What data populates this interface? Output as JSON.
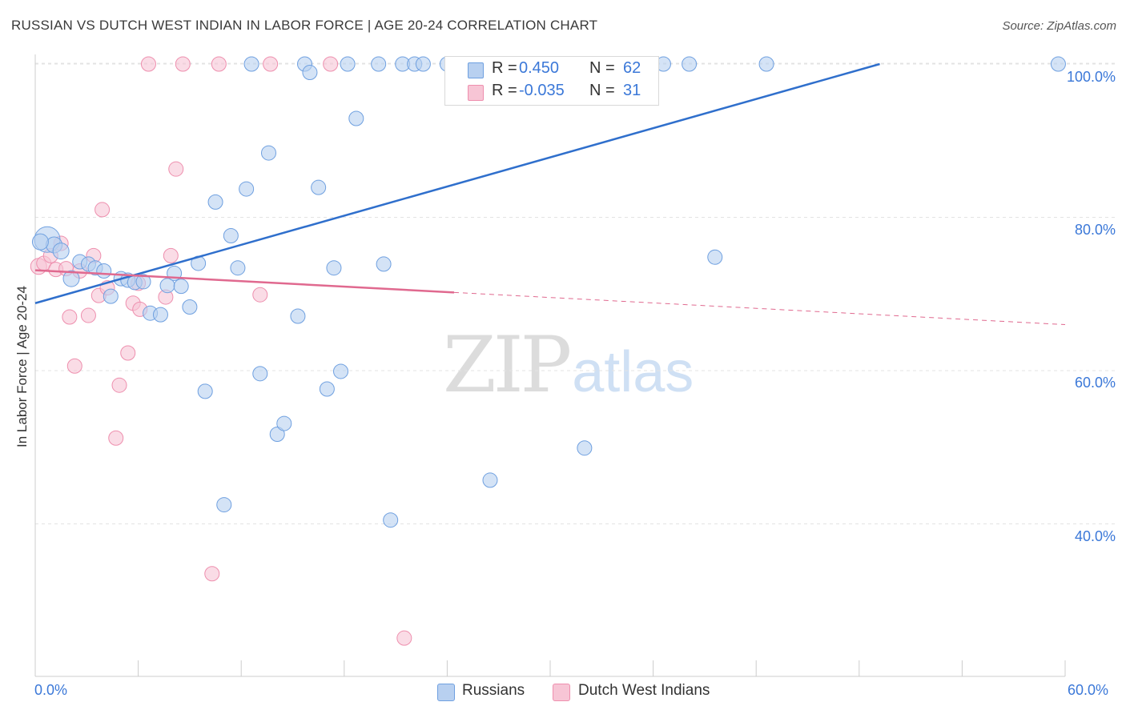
{
  "header": {
    "title": "RUSSIAN VS DUTCH WEST INDIAN IN LABOR FORCE | AGE 20-24 CORRELATION CHART",
    "source": "Source: ZipAtlas.com"
  },
  "watermark": {
    "zip": "ZIP",
    "atlas": "atlas"
  },
  "colors": {
    "russians": "#6fa0e0",
    "russians_fill": "#b8d0f0",
    "dutch": "#ee8fae",
    "dutch_fill": "#f7c5d5",
    "trend_russians": "#2f6fcc",
    "trend_dutch": "#e0698f",
    "tick_label": "#3b78d8",
    "grid": "#e3e3e3"
  },
  "legend_top": {
    "rows": [
      {
        "r_label": "R =",
        "r_value": "0.450",
        "n_label": "N =",
        "n_value": "62"
      },
      {
        "r_label": "R =",
        "r_value": "-0.035",
        "n_label": "N =",
        "n_value": "31"
      }
    ]
  },
  "legend_bottom": {
    "items": [
      "Russians",
      "Dutch West Indians"
    ]
  },
  "chart_data": {
    "type": "scatter",
    "title": "RUSSIAN VS DUTCH WEST INDIAN IN LABOR FORCE | AGE 20-24 CORRELATION CHART",
    "xlabel": "",
    "ylabel": "In Labor Force | Age 20-24",
    "xlim": [
      0,
      60
    ],
    "ylim": [
      20,
      103
    ],
    "x_tick_labels": [
      "0.0%",
      "60.0%"
    ],
    "y_ticks": [
      40,
      60,
      80,
      100
    ],
    "y_tick_labels": [
      "40.0%",
      "60.0%",
      "80.0%",
      "100.0%"
    ],
    "grid": "horizontal dashed",
    "legend_placement": "top-center",
    "series": [
      {
        "name": "Russians",
        "r": 0.45,
        "n": 62,
        "trend": {
          "x": [
            0,
            49.2
          ],
          "y": [
            68.8,
            100.0
          ]
        },
        "points": [
          {
            "x": 0.7,
            "y": 77.1,
            "s": 16
          },
          {
            "x": 1.1,
            "y": 76.4,
            "s": 10
          },
          {
            "x": 1.5,
            "y": 75.6,
            "s": 10
          },
          {
            "x": 2.1,
            "y": 72.0,
            "s": 10
          },
          {
            "x": 2.6,
            "y": 74.2,
            "s": 9
          },
          {
            "x": 3.1,
            "y": 73.9,
            "s": 9
          },
          {
            "x": 3.5,
            "y": 73.4,
            "s": 9
          },
          {
            "x": 4.0,
            "y": 73.0,
            "s": 9
          },
          {
            "x": 4.4,
            "y": 69.7,
            "s": 9
          },
          {
            "x": 5.0,
            "y": 72.0,
            "s": 9
          },
          {
            "x": 5.4,
            "y": 71.8,
            "s": 9
          },
          {
            "x": 5.8,
            "y": 71.5,
            "s": 9
          },
          {
            "x": 6.3,
            "y": 71.6,
            "s": 9
          },
          {
            "x": 6.7,
            "y": 67.5,
            "s": 9
          },
          {
            "x": 7.3,
            "y": 67.3,
            "s": 9
          },
          {
            "x": 7.7,
            "y": 71.1,
            "s": 9
          },
          {
            "x": 8.1,
            "y": 72.7,
            "s": 9
          },
          {
            "x": 8.5,
            "y": 71.0,
            "s": 9
          },
          {
            "x": 9.0,
            "y": 68.3,
            "s": 9
          },
          {
            "x": 9.5,
            "y": 74.0,
            "s": 9
          },
          {
            "x": 9.9,
            "y": 57.3,
            "s": 9
          },
          {
            "x": 10.5,
            "y": 82.0,
            "s": 9
          },
          {
            "x": 11.0,
            "y": 42.5,
            "s": 9
          },
          {
            "x": 11.4,
            "y": 77.6,
            "s": 9
          },
          {
            "x": 11.8,
            "y": 73.4,
            "s": 9
          },
          {
            "x": 12.3,
            "y": 83.7,
            "s": 9
          },
          {
            "x": 12.6,
            "y": 100.0,
            "s": 9
          },
          {
            "x": 13.1,
            "y": 59.6,
            "s": 9
          },
          {
            "x": 13.6,
            "y": 88.4,
            "s": 9
          },
          {
            "x": 14.1,
            "y": 51.7,
            "s": 9
          },
          {
            "x": 14.5,
            "y": 53.1,
            "s": 9
          },
          {
            "x": 15.3,
            "y": 67.1,
            "s": 9
          },
          {
            "x": 15.7,
            "y": 100.0,
            "s": 9
          },
          {
            "x": 16.0,
            "y": 98.9,
            "s": 9
          },
          {
            "x": 16.5,
            "y": 83.9,
            "s": 9
          },
          {
            "x": 17.0,
            "y": 57.6,
            "s": 9
          },
          {
            "x": 17.4,
            "y": 73.4,
            "s": 9
          },
          {
            "x": 17.8,
            "y": 59.9,
            "s": 9
          },
          {
            "x": 18.2,
            "y": 100.0,
            "s": 9
          },
          {
            "x": 18.7,
            "y": 92.9,
            "s": 9
          },
          {
            "x": 20.0,
            "y": 100.0,
            "s": 9
          },
          {
            "x": 20.3,
            "y": 73.9,
            "s": 9
          },
          {
            "x": 20.7,
            "y": 40.5,
            "s": 9
          },
          {
            "x": 21.4,
            "y": 100.0,
            "s": 9
          },
          {
            "x": 22.1,
            "y": 100.0,
            "s": 9
          },
          {
            "x": 22.6,
            "y": 100.0,
            "s": 9
          },
          {
            "x": 24.0,
            "y": 100.0,
            "s": 9
          },
          {
            "x": 24.5,
            "y": 100.0,
            "s": 9
          },
          {
            "x": 26.5,
            "y": 45.7,
            "s": 9
          },
          {
            "x": 27.3,
            "y": 100.0,
            "s": 9
          },
          {
            "x": 30.5,
            "y": 100.0,
            "s": 9
          },
          {
            "x": 32.0,
            "y": 49.9,
            "s": 9
          },
          {
            "x": 34.5,
            "y": 100.0,
            "s": 9
          },
          {
            "x": 36.6,
            "y": 100.0,
            "s": 9
          },
          {
            "x": 38.1,
            "y": 100.0,
            "s": 9
          },
          {
            "x": 39.6,
            "y": 74.8,
            "s": 9
          },
          {
            "x": 42.6,
            "y": 100.0,
            "s": 9
          },
          {
            "x": 59.6,
            "y": 100.0,
            "s": 9
          },
          {
            "x": 30.0,
            "y": 100.0,
            "s": 9
          },
          {
            "x": 25.5,
            "y": 100.0,
            "s": 9
          },
          {
            "x": 28.5,
            "y": 100.0,
            "s": 9
          },
          {
            "x": 0.3,
            "y": 76.8,
            "s": 10
          }
        ]
      },
      {
        "name": "Dutch West Indians",
        "r": -0.035,
        "n": 31,
        "trend": {
          "x": [
            0,
            24.4
          ],
          "y": [
            73.1,
            70.2
          ]
        },
        "trend_dashed": {
          "x": [
            24.4,
            60
          ],
          "y": [
            70.2,
            66.0
          ]
        },
        "points": [
          {
            "x": 0.2,
            "y": 73.6,
            "s": 10
          },
          {
            "x": 0.5,
            "y": 74.0,
            "s": 9
          },
          {
            "x": 0.9,
            "y": 75.0,
            "s": 9
          },
          {
            "x": 1.2,
            "y": 73.2,
            "s": 9
          },
          {
            "x": 1.5,
            "y": 76.6,
            "s": 9
          },
          {
            "x": 1.8,
            "y": 73.3,
            "s": 9
          },
          {
            "x": 2.0,
            "y": 67.0,
            "s": 9
          },
          {
            "x": 2.3,
            "y": 60.6,
            "s": 9
          },
          {
            "x": 2.6,
            "y": 73.0,
            "s": 9
          },
          {
            "x": 3.1,
            "y": 67.2,
            "s": 9
          },
          {
            "x": 3.4,
            "y": 75.0,
            "s": 9
          },
          {
            "x": 3.7,
            "y": 69.8,
            "s": 9
          },
          {
            "x": 3.9,
            "y": 81.0,
            "s": 9
          },
          {
            "x": 4.2,
            "y": 70.8,
            "s": 9
          },
          {
            "x": 4.7,
            "y": 51.2,
            "s": 9
          },
          {
            "x": 4.9,
            "y": 58.1,
            "s": 9
          },
          {
            "x": 5.4,
            "y": 62.3,
            "s": 9
          },
          {
            "x": 5.7,
            "y": 68.8,
            "s": 9
          },
          {
            "x": 6.1,
            "y": 68.0,
            "s": 9
          },
          {
            "x": 6.6,
            "y": 100.0,
            "s": 9
          },
          {
            "x": 7.6,
            "y": 69.6,
            "s": 9
          },
          {
            "x": 7.9,
            "y": 75.0,
            "s": 9
          },
          {
            "x": 8.2,
            "y": 86.3,
            "s": 9
          },
          {
            "x": 8.6,
            "y": 100.0,
            "s": 9
          },
          {
            "x": 10.3,
            "y": 33.5,
            "s": 9
          },
          {
            "x": 10.7,
            "y": 100.0,
            "s": 9
          },
          {
            "x": 13.1,
            "y": 69.9,
            "s": 9
          },
          {
            "x": 13.7,
            "y": 100.0,
            "s": 9
          },
          {
            "x": 17.2,
            "y": 100.0,
            "s": 9
          },
          {
            "x": 21.5,
            "y": 25.1,
            "s": 9
          },
          {
            "x": 6.0,
            "y": 71.4,
            "s": 9
          }
        ]
      }
    ]
  }
}
